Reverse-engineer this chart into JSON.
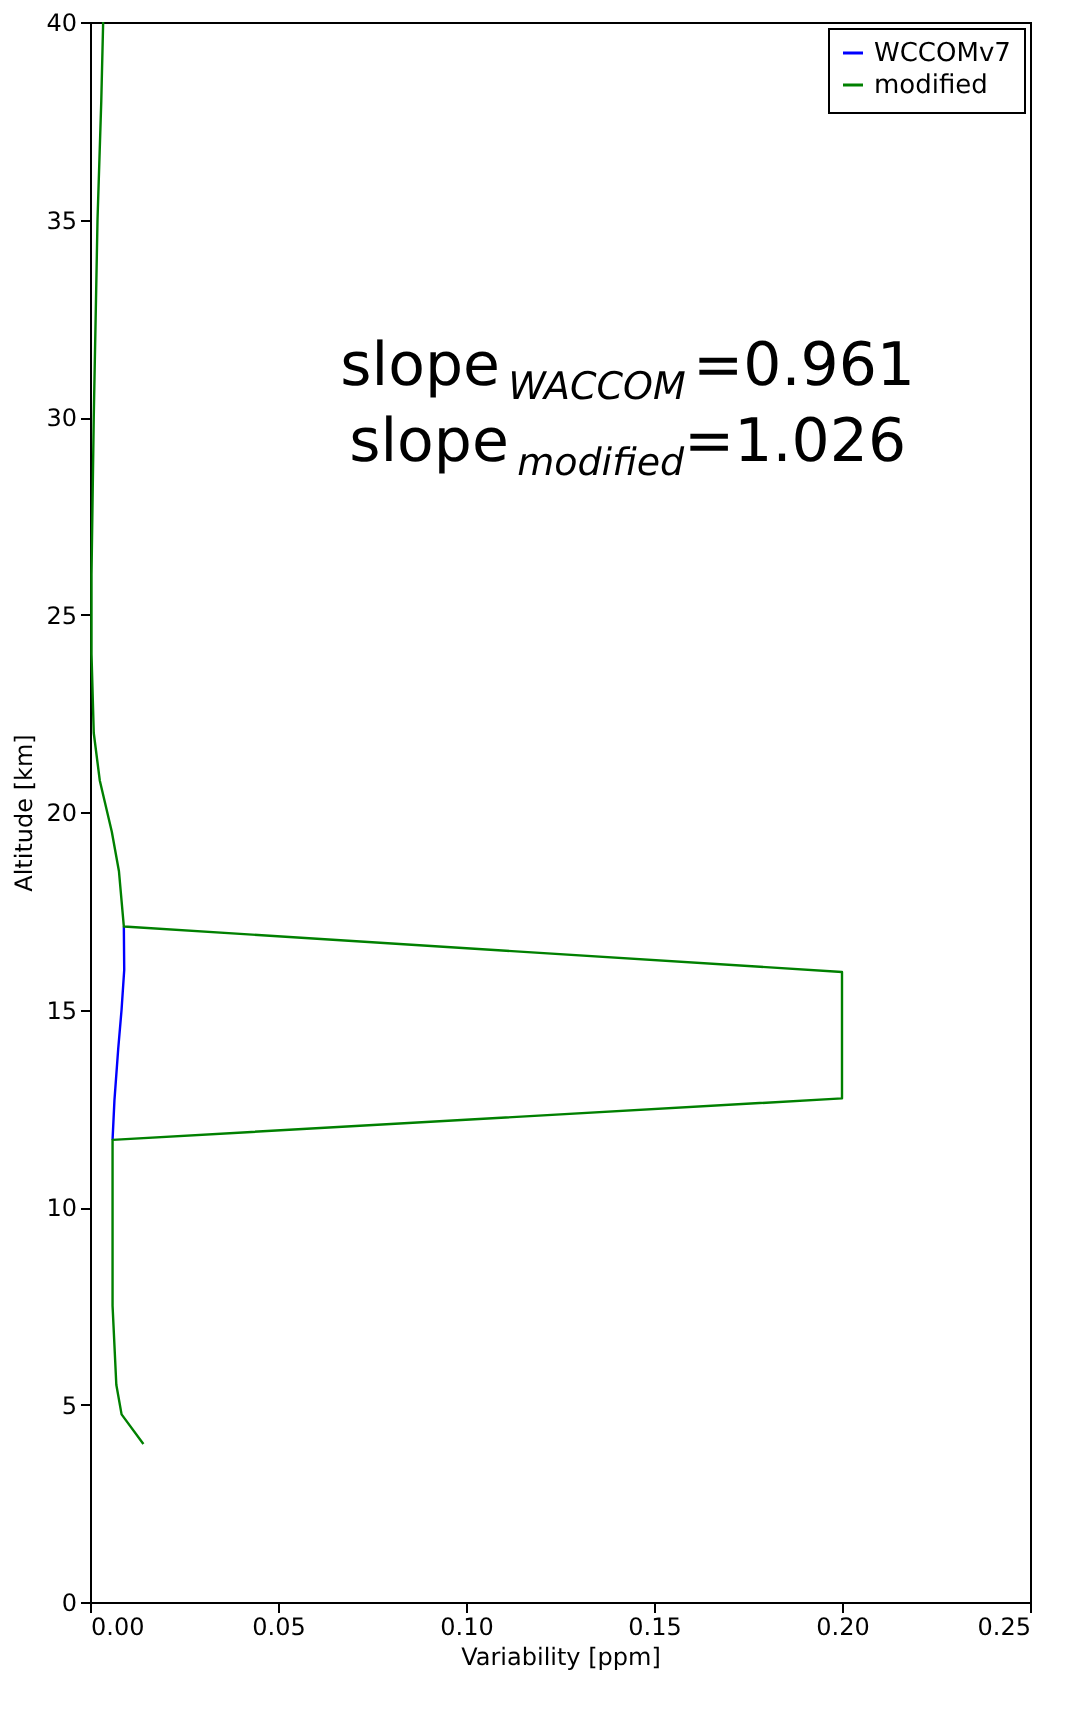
{
  "chart_data": {
    "type": "line",
    "xlabel": "Variability [ppm]",
    "ylabel": "Altitude [km]",
    "xlim": [
      0,
      0.25
    ],
    "xticks": [
      {
        "value": 0,
        "label": "0.00"
      },
      {
        "value": 0.05,
        "label": "0.05"
      },
      {
        "value": 0.1,
        "label": "0.10"
      },
      {
        "value": 0.15,
        "label": "0.15"
      },
      {
        "value": 0.2,
        "label": "0.20"
      },
      {
        "value": 0.25,
        "label": "0.25"
      }
    ],
    "ylim": [
      0,
      40
    ],
    "yticks": [
      0,
      5,
      10,
      15,
      20,
      25,
      30,
      35,
      40
    ],
    "grid": false,
    "legend": "top right",
    "marker": "none",
    "line_style": "solid",
    "annotations": [
      "slope$_{WACCOM}$=0.961",
      "slope$_{modified}$=1.026"
    ],
    "series": [
      {
        "name": "WCCOMv7",
        "color": "#0000ff",
        "x": [
          0.006,
          0.0065,
          0.0075,
          0.0084,
          0.0091,
          0.009
        ],
        "values": [
          11.7,
          12.7,
          14,
          15,
          16,
          17.1
        ]
      },
      {
        "name": "modified",
        "color": "#008000",
        "x": [
          0.0142,
          0.0084,
          0.007,
          0.006,
          0.006,
          0.2,
          0.2,
          0.009,
          0.0077,
          0.0058,
          0.0026,
          0.001,
          0.0004,
          0.0004,
          0.001,
          0.002,
          0.003,
          0.0035
        ],
        "values": [
          4,
          4.75,
          5.5,
          7.5,
          11.7,
          12.75,
          15.95,
          17.1,
          18.5,
          19.5,
          20.8,
          22,
          24,
          26,
          30,
          35,
          38,
          40
        ]
      }
    ]
  }
}
